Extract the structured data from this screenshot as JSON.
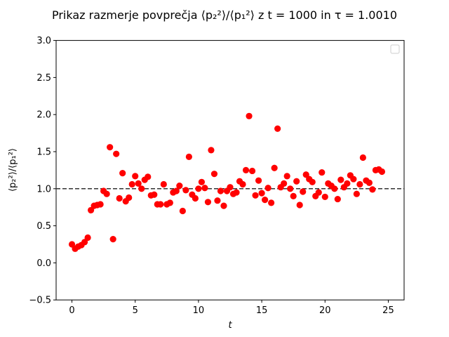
{
  "chart_data": {
    "type": "scatter",
    "title": "Prikaz razmerje povprečja ⟨p₂²⟩/⟨p₁²⟩  z t = 1000 in τ = 1.0010",
    "xlabel": "t",
    "ylabel": "⟨p₂²⟩/⟨p₁²⟩",
    "xlim": [
      -1.25,
      26.25
    ],
    "ylim": [
      -0.5,
      3.0
    ],
    "xticks": [
      0,
      5,
      10,
      15,
      20,
      25
    ],
    "yticks": [
      -0.5,
      0.0,
      0.5,
      1.0,
      1.5,
      2.0,
      2.5,
      3.0
    ],
    "xtick_labels": [
      "0",
      "5",
      "10",
      "15",
      "20",
      "25"
    ],
    "ytick_labels": [
      "−0.5",
      "0.0",
      "0.5",
      "1.0",
      "1.5",
      "2.0",
      "2.5",
      "3.0"
    ],
    "reference_line": {
      "y": 1.0,
      "style": "dashed",
      "color": "#333333"
    },
    "legend": {
      "placement": "upper-right",
      "entries": []
    },
    "grid": false,
    "series": [
      {
        "color": "#ff0000",
        "points": [
          [
            0.0,
            0.25
          ],
          [
            0.25,
            0.19
          ],
          [
            0.5,
            0.22
          ],
          [
            0.75,
            0.24
          ],
          [
            1.0,
            0.28
          ],
          [
            1.25,
            0.34
          ],
          [
            1.5,
            0.71
          ],
          [
            1.75,
            0.77
          ],
          [
            2.0,
            0.78
          ],
          [
            2.25,
            0.79
          ],
          [
            2.5,
            0.97
          ],
          [
            2.75,
            0.93
          ],
          [
            3.0,
            1.56
          ],
          [
            3.25,
            0.32
          ],
          [
            3.5,
            1.47
          ],
          [
            3.75,
            0.87
          ],
          [
            4.0,
            1.21
          ],
          [
            4.25,
            0.83
          ],
          [
            4.5,
            0.88
          ],
          [
            4.75,
            1.06
          ],
          [
            5.0,
            1.17
          ],
          [
            5.25,
            1.07
          ],
          [
            5.5,
            1.0
          ],
          [
            5.75,
            1.12
          ],
          [
            6.0,
            1.16
          ],
          [
            6.25,
            0.91
          ],
          [
            6.5,
            0.92
          ],
          [
            6.75,
            0.79
          ],
          [
            7.0,
            0.79
          ],
          [
            7.25,
            1.06
          ],
          [
            7.5,
            0.79
          ],
          [
            7.75,
            0.81
          ],
          [
            8.0,
            0.95
          ],
          [
            8.25,
            0.97
          ],
          [
            8.5,
            1.04
          ],
          [
            8.75,
            0.7
          ],
          [
            9.0,
            0.98
          ],
          [
            9.25,
            1.43
          ],
          [
            9.5,
            0.92
          ],
          [
            9.75,
            0.87
          ],
          [
            10.0,
            1.0
          ],
          [
            10.25,
            1.09
          ],
          [
            10.5,
            1.01
          ],
          [
            10.75,
            0.82
          ],
          [
            11.0,
            1.52
          ],
          [
            11.25,
            1.2
          ],
          [
            11.5,
            0.84
          ],
          [
            11.75,
            0.97
          ],
          [
            12.0,
            0.77
          ],
          [
            12.25,
            0.97
          ],
          [
            12.5,
            1.02
          ],
          [
            12.75,
            0.93
          ],
          [
            13.0,
            0.95
          ],
          [
            13.25,
            1.1
          ],
          [
            13.5,
            1.06
          ],
          [
            13.75,
            1.25
          ],
          [
            14.0,
            1.98
          ],
          [
            14.25,
            1.24
          ],
          [
            14.5,
            0.91
          ],
          [
            14.75,
            1.11
          ],
          [
            15.0,
            0.94
          ],
          [
            15.25,
            0.85
          ],
          [
            15.5,
            1.01
          ],
          [
            15.75,
            0.81
          ],
          [
            16.0,
            1.28
          ],
          [
            16.25,
            1.81
          ],
          [
            16.5,
            1.02
          ],
          [
            16.75,
            1.07
          ],
          [
            17.0,
            1.17
          ],
          [
            17.25,
            1.0
          ],
          [
            17.5,
            0.9
          ],
          [
            17.75,
            1.1
          ],
          [
            18.0,
            0.78
          ],
          [
            18.25,
            0.96
          ],
          [
            18.5,
            1.19
          ],
          [
            18.75,
            1.13
          ],
          [
            19.0,
            1.09
          ],
          [
            19.25,
            0.9
          ],
          [
            19.5,
            0.95
          ],
          [
            19.75,
            1.22
          ],
          [
            20.0,
            0.89
          ],
          [
            20.25,
            1.07
          ],
          [
            20.5,
            1.04
          ],
          [
            20.75,
            1.0
          ],
          [
            21.0,
            0.86
          ],
          [
            21.25,
            1.12
          ],
          [
            21.5,
            1.02
          ],
          [
            21.75,
            1.07
          ],
          [
            22.0,
            1.18
          ],
          [
            22.25,
            1.13
          ],
          [
            22.5,
            0.93
          ],
          [
            22.75,
            1.06
          ],
          [
            23.0,
            1.42
          ],
          [
            23.25,
            1.11
          ],
          [
            23.5,
            1.08
          ],
          [
            23.75,
            0.99
          ],
          [
            24.0,
            1.25
          ],
          [
            24.25,
            1.26
          ],
          [
            24.5,
            1.23
          ]
        ]
      }
    ]
  }
}
